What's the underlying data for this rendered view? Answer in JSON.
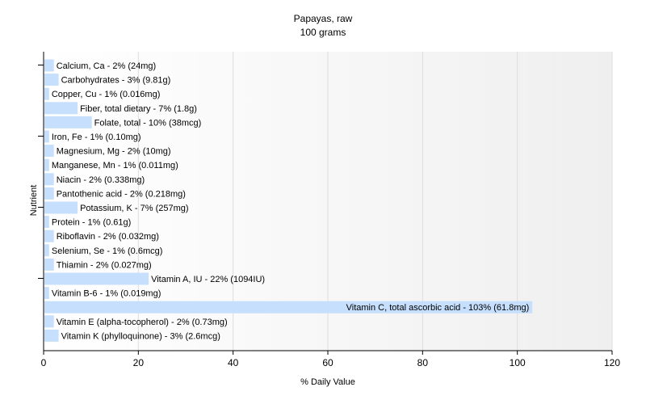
{
  "chart_data": {
    "type": "bar",
    "orientation": "horizontal",
    "title": "Papayas, raw",
    "subtitle": "100 grams",
    "xlabel": "% Daily Value",
    "ylabel": "Nutrient",
    "xlim": [
      0,
      120
    ],
    "xticks": [
      0,
      20,
      40,
      60,
      80,
      100,
      120
    ],
    "grid": true,
    "bar_color": "#c6dffc",
    "background_gradient": [
      "#ffffff",
      "#efefef"
    ],
    "categories": [
      "Calcium, Ca",
      "Carbohydrates",
      "Copper, Cu",
      "Fiber, total dietary",
      "Folate, total",
      "Iron, Fe",
      "Magnesium, Mg",
      "Manganese, Mn",
      "Niacin",
      "Pantothenic acid",
      "Potassium, K",
      "Protein",
      "Riboflavin",
      "Selenium, Se",
      "Thiamin",
      "Vitamin A, IU",
      "Vitamin B-6",
      "Vitamin C, total ascorbic acid",
      "Vitamin E (alpha-tocopherol)",
      "Vitamin K (phylloquinone)"
    ],
    "values": [
      2,
      3,
      1,
      7,
      10,
      1,
      2,
      1,
      2,
      2,
      7,
      1,
      2,
      1,
      2,
      22,
      1,
      103,
      2,
      3
    ],
    "labels": [
      "Calcium, Ca - 2% (24mg)",
      "Carbohydrates - 3% (9.81g)",
      "Copper, Cu - 1% (0.016mg)",
      "Fiber, total dietary - 7% (1.8g)",
      "Folate, total - 10% (38mcg)",
      "Iron, Fe - 1% (0.10mg)",
      "Magnesium, Mg - 2% (10mg)",
      "Manganese, Mn - 1% (0.011mg)",
      "Niacin - 2% (0.338mg)",
      "Pantothenic acid - 2% (0.218mg)",
      "Potassium, K - 7% (257mg)",
      "Protein - 1% (0.61g)",
      "Riboflavin - 2% (0.032mg)",
      "Selenium, Se - 1% (0.6mcg)",
      "Thiamin - 2% (0.027mg)",
      "Vitamin A, IU - 22% (1094IU)",
      "Vitamin B-6 - 1% (0.019mg)",
      "Vitamin C, total ascorbic acid - 103% (61.8mg)",
      "Vitamin E (alpha-tocopherol) - 2% (0.73mg)",
      "Vitamin K (phylloquinone) - 3% (2.6mcg)"
    ]
  }
}
